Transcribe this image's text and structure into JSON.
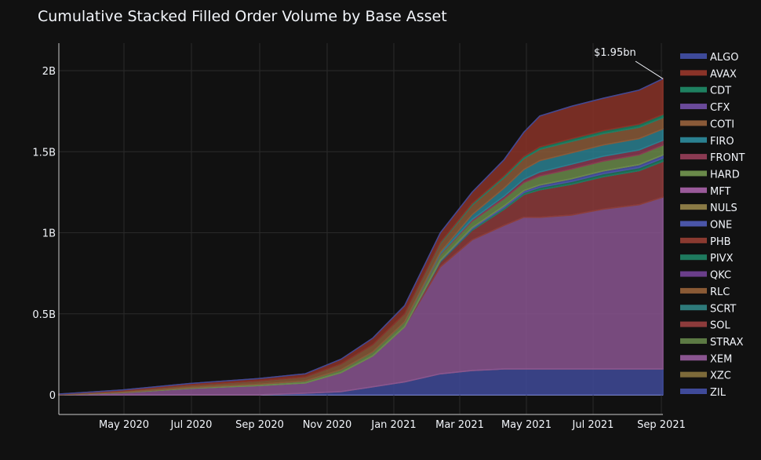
{
  "chart_data": {
    "type": "area",
    "stacked": true,
    "title": "Cumulative Stacked Filled Order Volume by Base Asset",
    "xlabel": "",
    "ylabel": "",
    "x_ticks": [
      "May 2020",
      "Jul 2020",
      "Sep 2020",
      "Nov 2020",
      "Jan 2021",
      "Mar 2021",
      "May 2021",
      "Jul 2021",
      "Sep 2021"
    ],
    "y_ticks": [
      "0",
      "0.5B",
      "1B",
      "1.5B",
      "2B"
    ],
    "ylim": [
      -0.12,
      2.19
    ],
    "xlim": [
      2020.21,
      2021.73
    ],
    "grid": true,
    "legend_position": "right",
    "annotation": "$1.95bn",
    "x": [
      2020.21,
      2020.37,
      2020.54,
      2020.71,
      2020.83,
      2020.92,
      2021.0,
      2021.08,
      2021.17,
      2021.25,
      2021.33,
      2021.38,
      2021.42,
      2021.5,
      2021.58,
      2021.67,
      2021.73
    ],
    "series": [
      {
        "name": "ZIL",
        "color": "#3f4a99",
        "values": [
          0,
          0,
          0,
          0,
          0.01,
          0.02,
          0.05,
          0.08,
          0.13,
          0.15,
          0.16,
          0.16,
          0.16,
          0.16,
          0.16,
          0.16,
          0.16
        ]
      },
      {
        "name": "XZC",
        "color": "#7d6a3a",
        "values": [
          0,
          0,
          0,
          0,
          0,
          0,
          0,
          0,
          0,
          0,
          0,
          0,
          0,
          0,
          0,
          0,
          0
        ]
      },
      {
        "name": "XEM",
        "color": "#8a5590",
        "values": [
          0,
          0,
          0,
          0,
          0,
          0,
          0,
          0,
          0,
          0,
          0,
          0,
          0,
          0,
          0,
          0,
          0
        ]
      },
      {
        "name": "STRAX",
        "color": "#5c7a44",
        "values": [
          0,
          0,
          0,
          0,
          0,
          0,
          0,
          0,
          0,
          0,
          0,
          0,
          0,
          0,
          0,
          0,
          0
        ]
      },
      {
        "name": "SOL",
        "color": "#8d3b3b",
        "values": [
          0,
          0,
          0,
          0,
          0,
          0,
          0,
          0,
          0.03,
          0.06,
          0.1,
          0.14,
          0.17,
          0.19,
          0.2,
          0.21,
          0.22
        ]
      },
      {
        "name": "SCRT",
        "color": "#2e7a7a",
        "values": [
          0,
          0,
          0,
          0,
          0,
          0,
          0,
          0,
          0,
          0,
          0,
          0,
          0,
          0,
          0,
          0,
          0
        ]
      },
      {
        "name": "RLC",
        "color": "#8a5a35",
        "values": [
          0,
          0,
          0,
          0,
          0,
          0,
          0,
          0,
          0,
          0,
          0,
          0,
          0,
          0,
          0,
          0,
          0
        ]
      },
      {
        "name": "QKC",
        "color": "#6a3e8a",
        "values": [
          0,
          0,
          0,
          0,
          0,
          0,
          0,
          0,
          0,
          0,
          0,
          0,
          0,
          0,
          0,
          0,
          0
        ]
      },
      {
        "name": "PIVX",
        "color": "#1e7a5e",
        "values": [
          0,
          0,
          0,
          0,
          0,
          0,
          0,
          0,
          0.005,
          0.008,
          0.01,
          0.012,
          0.015,
          0.017,
          0.018,
          0.019,
          0.02
        ]
      },
      {
        "name": "PHB",
        "color": "#8a3a30",
        "values": [
          0,
          0,
          0,
          0,
          0,
          0,
          0,
          0,
          0,
          0,
          0,
          0,
          0,
          0,
          0,
          0,
          0
        ]
      },
      {
        "name": "ONE",
        "color": "#4a55a8",
        "values": [
          0,
          0,
          0,
          0,
          0,
          0,
          0,
          0,
          0.005,
          0.008,
          0.01,
          0.012,
          0.015,
          0.017,
          0.018,
          0.019,
          0.02
        ]
      },
      {
        "name": "NULS",
        "color": "#8a7a45",
        "values": [
          0,
          0,
          0,
          0,
          0,
          0,
          0,
          0,
          0,
          0,
          0,
          0,
          0,
          0,
          0,
          0,
          0
        ]
      },
      {
        "name": "MFT",
        "color": "#9a5a9a",
        "values": [
          0,
          0,
          0,
          0,
          0,
          0,
          0,
          0,
          0,
          0,
          0,
          0,
          0,
          0,
          0,
          0,
          0
        ]
      },
      {
        "name": "HARD",
        "color": "#6a8a4a",
        "values": [
          0.001,
          0.003,
          0.005,
          0.008,
          0.012,
          0.018,
          0.025,
          0.03,
          0.035,
          0.04,
          0.045,
          0.05,
          0.055,
          0.06,
          0.06,
          0.06,
          0.06
        ]
      },
      {
        "name": "FRONT",
        "color": "#8a3a52",
        "values": [
          0,
          0,
          0,
          0,
          0,
          0,
          0,
          0,
          0.005,
          0.01,
          0.015,
          0.02,
          0.025,
          0.03,
          0.03,
          0.03,
          0.03
        ]
      },
      {
        "name": "FIRO",
        "color": "#2a8090",
        "values": [
          0,
          0,
          0,
          0,
          0,
          0,
          0,
          0,
          0.01,
          0.03,
          0.05,
          0.06,
          0.07,
          0.07,
          0.07,
          0.07,
          0.07
        ]
      },
      {
        "name": "COTI",
        "color": "#8a5a38",
        "values": [
          0.002,
          0.008,
          0.015,
          0.02,
          0.025,
          0.035,
          0.045,
          0.05,
          0.055,
          0.06,
          0.065,
          0.068,
          0.07,
          0.07,
          0.07,
          0.07,
          0.07
        ]
      },
      {
        "name": "CFX",
        "color": "#6a4a9a",
        "values": [
          0,
          0,
          0,
          0,
          0,
          0,
          0,
          0,
          0,
          0,
          0,
          0,
          0,
          0,
          0,
          0,
          0
        ]
      },
      {
        "name": "CDT",
        "color": "#1e8060",
        "values": [
          0,
          0,
          0,
          0,
          0,
          0,
          0,
          0,
          0.005,
          0.008,
          0.01,
          0.012,
          0.015,
          0.017,
          0.018,
          0.019,
          0.02
        ]
      },
      {
        "name": "AVAX",
        "color": "#8a3328",
        "values": [
          0.002,
          0.006,
          0.01,
          0.015,
          0.02,
          0.03,
          0.04,
          0.05,
          0.06,
          0.07,
          0.1,
          0.15,
          0.19,
          0.2,
          0.2,
          0.21,
          0.22
        ]
      },
      {
        "name": "ALGO",
        "color": "#3e4a99",
        "values": [
          0,
          0,
          0,
          0,
          0,
          0,
          0,
          0,
          0,
          0,
          0,
          0,
          0,
          0,
          0,
          0,
          0
        ]
      }
    ],
    "top_total": [
      0.005,
      0.03,
      0.07,
      0.1,
      0.13,
      0.22,
      0.35,
      0.55,
      1.0,
      1.25,
      1.45,
      1.62,
      1.72,
      1.78,
      1.83,
      1.88,
      1.95
    ]
  }
}
